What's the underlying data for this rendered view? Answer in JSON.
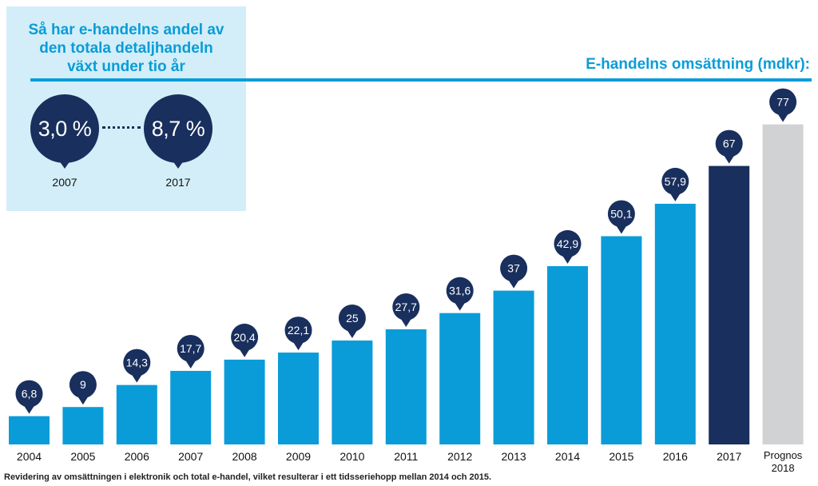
{
  "inset": {
    "title_lines": [
      "Så har e-handelns andel av",
      "den totala detaljhandeln",
      "växt under tio år"
    ],
    "start": {
      "value": "3,0 %",
      "year": "2007"
    },
    "end": {
      "value": "8,7 %",
      "year": "2017"
    }
  },
  "chart_data": {
    "type": "bar",
    "title": "E-handelns omsättning (mdkr):",
    "categories": [
      "2004",
      "2005",
      "2006",
      "2007",
      "2008",
      "2009",
      "2010",
      "2011",
      "2012",
      "2013",
      "2014",
      "2015",
      "2016",
      "2017",
      "Prognos 2018"
    ],
    "values": [
      6.8,
      9,
      14.3,
      17.7,
      20.4,
      22.1,
      25,
      27.7,
      31.6,
      37,
      42.9,
      50.1,
      57.9,
      67,
      77
    ],
    "value_labels": [
      "6,8",
      "9",
      "14,3",
      "17,7",
      "20,4",
      "22,1",
      "25",
      "27,7",
      "31,6",
      "37",
      "42,9",
      "50,1",
      "57,9",
      "67",
      "77"
    ],
    "ylim": [
      0,
      77
    ],
    "xlabel": "",
    "ylabel": "",
    "colors": {
      "default": "#0a9cd8",
      "highlight": "#192f5d",
      "forecast": "#d1d2d4",
      "label_bubble": "#192f5d"
    },
    "highlight_index": 13,
    "forecast_index": 14
  },
  "footnote": "Revidering av omsättningen i elektronik och total e-handel, vilket resulterar i ett tidsseriehopp mellan 2014 och 2015."
}
